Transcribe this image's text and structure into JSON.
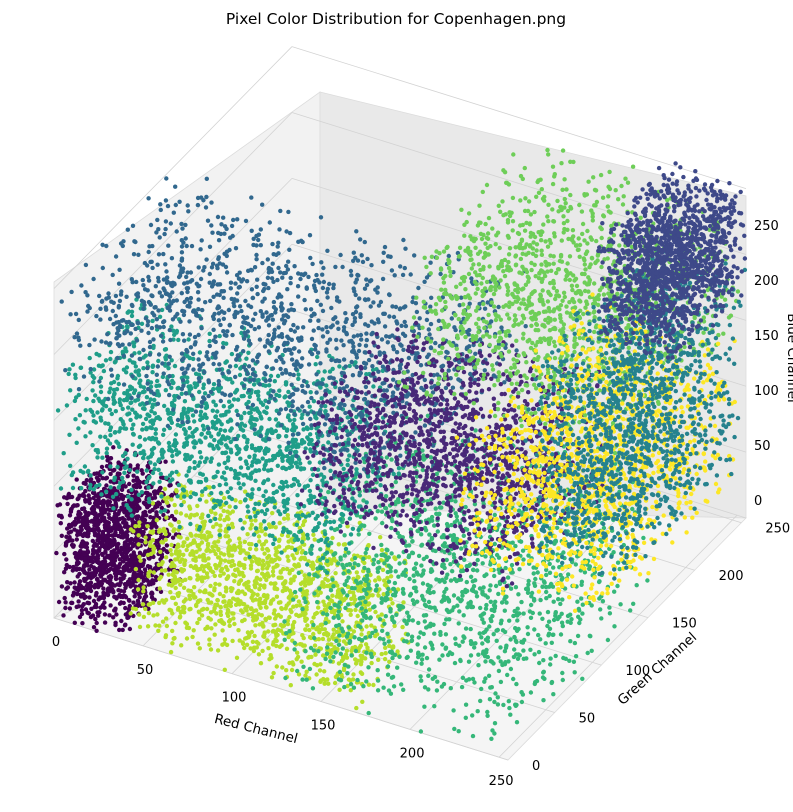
{
  "chart_data": {
    "type": "scatter",
    "title": "Pixel Color Distribution for Copenhagen.png",
    "xlabel": "Red Channel",
    "ylabel": "Green Channel",
    "zlabel": "Blue Channel",
    "xlim": [
      0,
      255
    ],
    "ylim": [
      0,
      255
    ],
    "zlim": [
      0,
      255
    ],
    "x_ticks": [
      "0",
      "50",
      "100",
      "150",
      "200",
      "250"
    ],
    "y_ticks": [
      "0",
      "50",
      "100",
      "150",
      "200",
      "250"
    ],
    "z_ticks": [
      "0",
      "50",
      "100",
      "150",
      "200",
      "250"
    ],
    "grid": true,
    "colormap": "viridis",
    "clusters": [
      {
        "color": "#440154",
        "red": [
          0,
          40
        ],
        "green": [
          0,
          60
        ],
        "blue": [
          0,
          90
        ]
      },
      {
        "color": "#b5de2b",
        "red": [
          40,
          170
        ],
        "green": [
          0,
          60
        ],
        "blue": [
          0,
          90
        ]
      },
      {
        "color": "#35b779",
        "red": [
          120,
          255
        ],
        "green": [
          0,
          160
        ],
        "blue": [
          0,
          110
        ]
      },
      {
        "color": "#1f9e89",
        "red": [
          0,
          150
        ],
        "green": [
          0,
          90
        ],
        "blue": [
          90,
          190
        ]
      },
      {
        "color": "#31688e",
        "red": [
          0,
          200
        ],
        "green": [
          0,
          130
        ],
        "blue": [
          170,
          255
        ]
      },
      {
        "color": "#482878",
        "red": [
          100,
          220
        ],
        "green": [
          70,
          180
        ],
        "blue": [
          60,
          150
        ]
      },
      {
        "color": "#6ece58",
        "red": [
          130,
          255
        ],
        "green": [
          120,
          255
        ],
        "blue": [
          140,
          240
        ]
      },
      {
        "color": "#fde725",
        "red": [
          170,
          255
        ],
        "green": [
          100,
          250
        ],
        "blue": [
          30,
          140
        ]
      },
      {
        "color": "#26828e",
        "red": [
          200,
          255
        ],
        "green": [
          120,
          255
        ],
        "blue": [
          40,
          190
        ]
      },
      {
        "color": "#3e4989",
        "red": [
          210,
          255
        ],
        "green": [
          180,
          255
        ],
        "blue": [
          170,
          255
        ]
      }
    ]
  }
}
